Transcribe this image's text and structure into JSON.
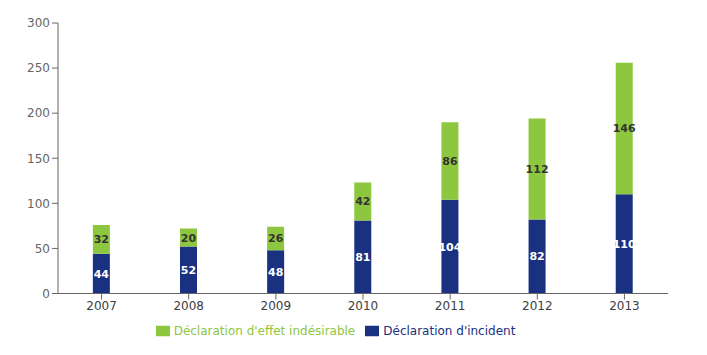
{
  "chart_data": {
    "type": "bar",
    "stacked": true,
    "categories": [
      "2007",
      "2008",
      "2009",
      "2010",
      "2011",
      "2012",
      "2013"
    ],
    "series": [
      {
        "name": "Déclaration d'incident",
        "color": "#1A3080",
        "values": [
          44,
          52,
          48,
          81,
          104,
          82,
          110
        ]
      },
      {
        "name": "Déclaration d'effet indésirable",
        "color": "#8DC63F",
        "values": [
          32,
          20,
          26,
          42,
          86,
          112,
          146
        ]
      }
    ],
    "ylim": [
      0,
      300
    ],
    "yticks": [
      0,
      50,
      100,
      150,
      200,
      250,
      300
    ],
    "data_labels": true,
    "grid": false,
    "legend": "bottom"
  }
}
